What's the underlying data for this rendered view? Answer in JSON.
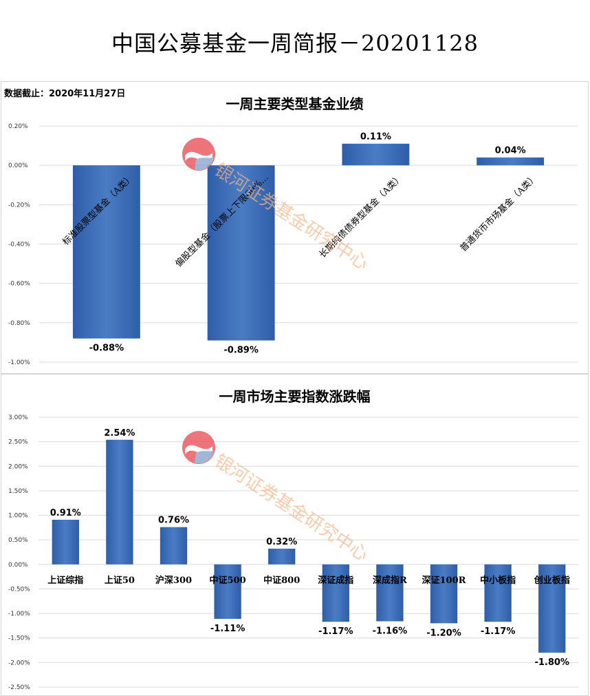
{
  "header": {
    "title": "中国公募基金一周简报－20201128",
    "date_note": "数据截止：2020年11月27日"
  },
  "watermark": {
    "text": "银河证券基金研究中心",
    "colors": [
      "#e8525a",
      "#8aa6cf",
      "#f3b487"
    ]
  },
  "chart_data": [
    {
      "type": "bar",
      "title": "一周主要类型基金业绩",
      "categories": [
        "标准股票型基金（A类）",
        "偏股型基金（股票上下限60%...",
        "长期纯债债券型基金（A类）",
        "普通货币市场基金（A类）"
      ],
      "values": [
        -0.88,
        -0.89,
        0.11,
        0.04
      ],
      "value_labels": [
        "-0.88%",
        "-0.89%",
        "0.11%",
        "0.04%"
      ],
      "ylim": [
        -1.0,
        0.2
      ],
      "yticks": [
        "0.20%",
        "0.00%",
        "-0.20%",
        "-0.40%",
        "-0.60%",
        "-0.80%",
        "-1.00%"
      ],
      "grid": true,
      "bar_color": "#3f6fb8"
    },
    {
      "type": "bar",
      "title": "一周市场主要指数涨跌幅",
      "categories": [
        "上证综指",
        "上证50",
        "沪深300",
        "中证500",
        "中证800",
        "深证成指",
        "深成指R",
        "深证100R",
        "中小板指",
        "创业板指"
      ],
      "values": [
        0.91,
        2.54,
        0.76,
        -1.11,
        0.32,
        -1.17,
        -1.16,
        -1.2,
        -1.17,
        -1.8
      ],
      "value_labels": [
        "0.91%",
        "2.54%",
        "0.76%",
        "-1.11%",
        "0.32%",
        "-1.17%",
        "-1.16%",
        "-1.20%",
        "-1.17%",
        "-1.80%"
      ],
      "ylim": [
        -2.5,
        3.0
      ],
      "yticks": [
        "3.00%",
        "2.50%",
        "2.00%",
        "1.50%",
        "1.00%",
        "0.50%",
        "0.00%",
        "-0.50%",
        "-1.00%",
        "-1.50%",
        "-2.00%",
        "-2.50%"
      ],
      "grid": true,
      "bar_color": "#3f6fb8"
    }
  ]
}
